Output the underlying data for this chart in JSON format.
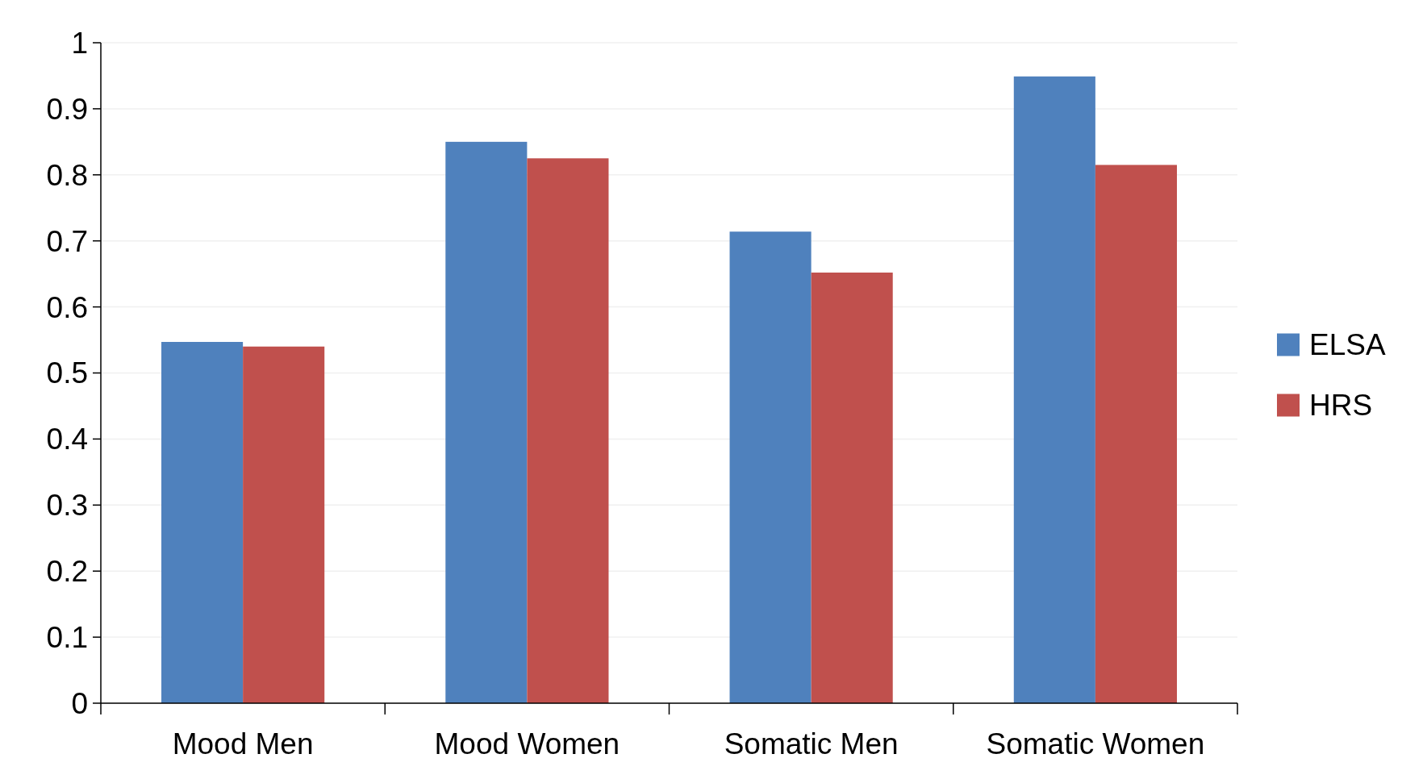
{
  "chart_data": {
    "type": "bar",
    "categories": [
      "Mood Men",
      "Mood Women",
      "Somatic Men",
      "Somatic Women"
    ],
    "series": [
      {
        "name": "ELSA",
        "color": "#4f81bd",
        "values": [
          0.547,
          0.85,
          0.714,
          0.949
        ]
      },
      {
        "name": "HRS",
        "color": "#c0504d",
        "values": [
          0.54,
          0.825,
          0.652,
          0.815
        ]
      }
    ],
    "ylim": [
      0,
      1
    ],
    "yticks": [
      0,
      0.1,
      0.2,
      0.3,
      0.4,
      0.5,
      0.6,
      0.7,
      0.8,
      0.9,
      1
    ],
    "grid": "y",
    "legend": "right"
  }
}
